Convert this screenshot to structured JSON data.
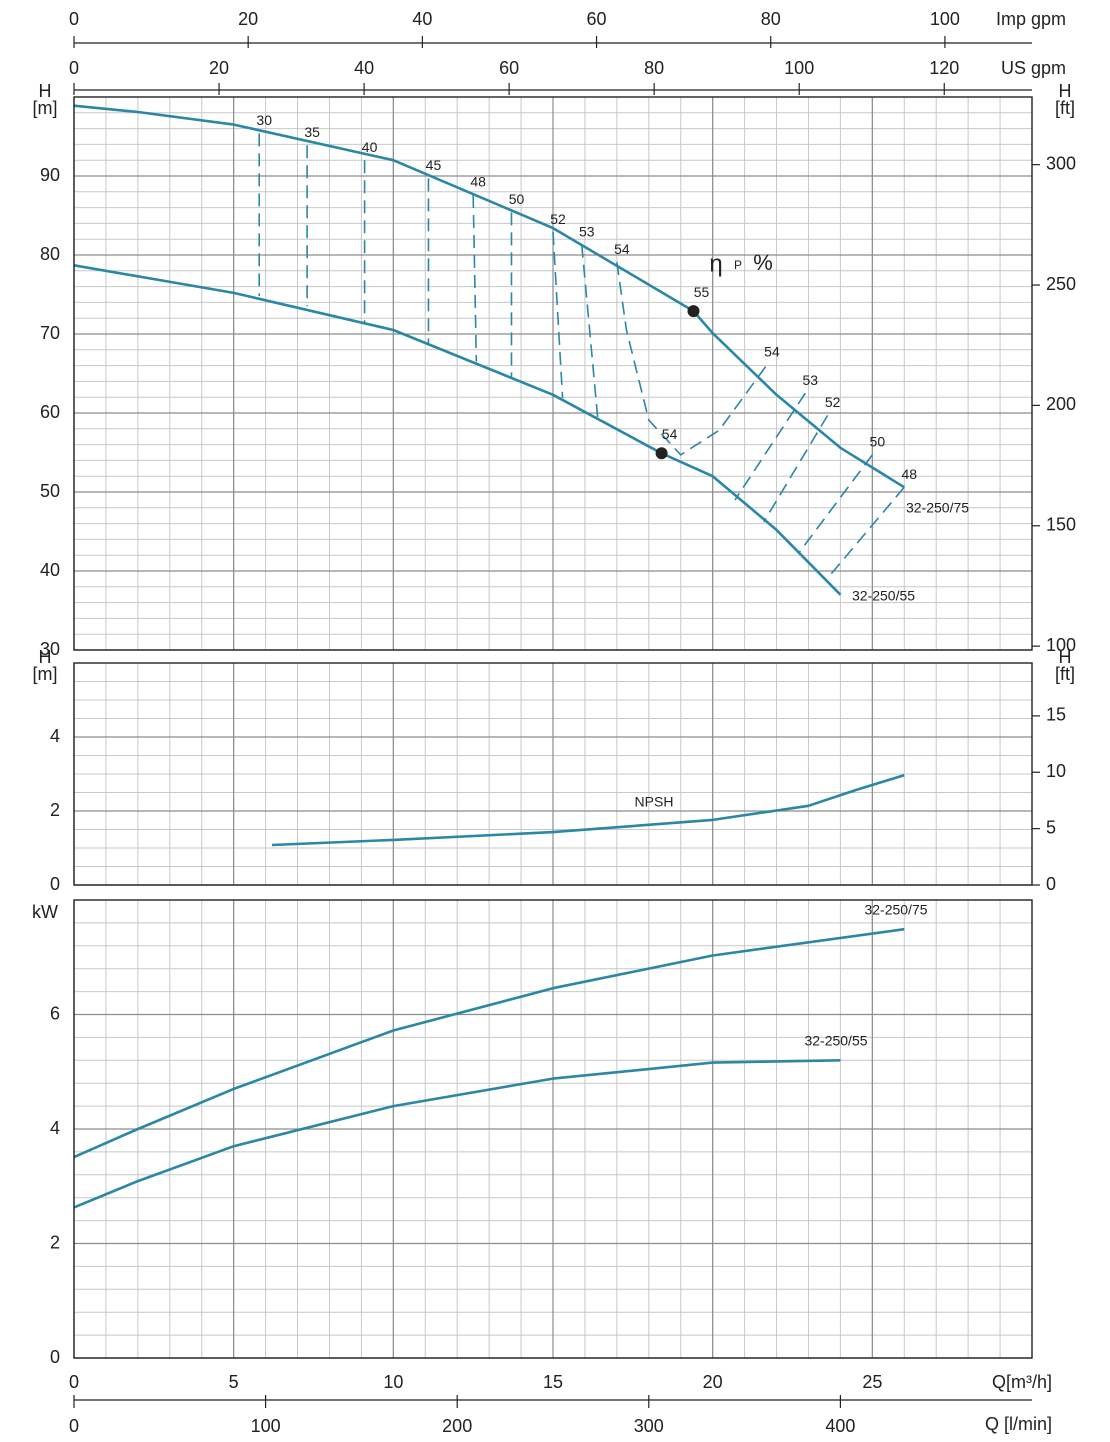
{
  "chart_data": [
    {
      "type": "line",
      "y_label": "H",
      "y_unit": "[m]",
      "y2_label": "H",
      "y2_unit": "[ft]",
      "xlim": [
        0,
        30
      ],
      "xticks": [
        0,
        5,
        10,
        15,
        20,
        25
      ],
      "minor_x_step": 1,
      "ylim": [
        30,
        100
      ],
      "yticks": [
        30,
        40,
        50,
        60,
        70,
        80,
        90
      ],
      "minor_y_step": 2,
      "y2lim": [
        98.4,
        328.1
      ],
      "y2ticks": [
        100,
        150,
        200,
        250,
        300
      ],
      "grid": true,
      "top_axes": [
        {
          "label": "Imp gpm",
          "xlim": [
            0,
            110
          ],
          "xticks": [
            0,
            20,
            40,
            60,
            80,
            100
          ]
        },
        {
          "label": "US gpm",
          "xlim": [
            0,
            132.1
          ],
          "xticks": [
            0,
            20,
            40,
            60,
            80,
            100,
            120
          ]
        }
      ],
      "series": [
        {
          "name": "32-250/75",
          "color": "#2a87a5",
          "x": [
            0,
            2,
            5,
            10,
            15,
            19.4,
            20,
            22,
            24,
            26
          ],
          "values": [
            98.9,
            98.1,
            96.5,
            92.0,
            83.4,
            72.9,
            70.1,
            62.3,
            55.6,
            50.6
          ]
        },
        {
          "name": "32-250/55",
          "color": "#2a87a5",
          "x": [
            0,
            5,
            10,
            15,
            18.4,
            20,
            22,
            24
          ],
          "values": [
            78.7,
            75.2,
            70.5,
            62.3,
            54.9,
            52.0,
            45.2,
            37.0
          ]
        }
      ],
      "efficiency_lines": [
        {
          "label": 30,
          "x": [
            5.8,
            5.8
          ],
          "values": [
            95.4,
            74.8
          ]
        },
        {
          "label": 35,
          "x": [
            7.3,
            7.3
          ],
          "values": [
            93.9,
            73.5
          ]
        },
        {
          "label": 40,
          "x": [
            9.1,
            9.1
          ],
          "values": [
            92.0,
            71.5
          ]
        },
        {
          "label": 45,
          "x": [
            11.1,
            11.1
          ],
          "values": [
            89.7,
            68.6
          ]
        },
        {
          "label": 48,
          "x": [
            12.5,
            12.6
          ],
          "values": [
            87.6,
            66.5
          ]
        },
        {
          "label": 50,
          "x": [
            13.7,
            13.7
          ],
          "values": [
            85.4,
            64.6
          ]
        },
        {
          "label": 52,
          "x": [
            15.0,
            15.3
          ],
          "values": [
            82.9,
            61.9
          ]
        },
        {
          "label": 53,
          "x": [
            15.9,
            16.4
          ],
          "values": [
            81.3,
            59.4
          ]
        },
        {
          "label": 54,
          "x": [
            17.0,
            17.3,
            18.0,
            19.0,
            20.2,
            21.7
          ],
          "values": [
            79.1,
            70.5,
            59.1,
            54.7,
            57.8,
            66.1
          ]
        },
        {
          "label": 54,
          "x": [
            21.7
          ],
          "values": [
            66.1
          ]
        },
        {
          "label": 53,
          "x": [
            22.9,
            20.7
          ],
          "values": [
            62.5,
            49.0
          ]
        },
        {
          "label": 52,
          "x": [
            23.6,
            21.6
          ],
          "values": [
            59.7,
            46.2
          ]
        },
        {
          "label": 50,
          "x": [
            25.0,
            22.7
          ],
          "values": [
            54.7,
            42.3
          ]
        },
        {
          "label": 48,
          "x": [
            26.0,
            23.6
          ],
          "values": [
            50.6,
            39.1
          ]
        }
      ],
      "bep_points": [
        {
          "label": 55,
          "x": 19.4,
          "value": 72.9
        },
        {
          "label": 54,
          "x": 18.4,
          "value": 54.9
        }
      ],
      "efficiency_label": [
        "η",
        "P",
        "%"
      ]
    },
    {
      "type": "line",
      "y_label": "H",
      "y_unit": "[m]",
      "y2_label": "H",
      "y2_unit": "[ft]",
      "xlim": [
        0,
        30
      ],
      "xticks": [
        0,
        5,
        10,
        15,
        20,
        25
      ],
      "minor_x_step": 1,
      "ylim": [
        0,
        6
      ],
      "yticks": [
        0,
        2,
        4
      ],
      "minor_y_step": 0.5,
      "y2lim": [
        0,
        19.69
      ],
      "y2ticks": [
        0,
        5,
        10,
        15
      ],
      "grid": true,
      "series": [
        {
          "name": "NPSH",
          "color": "#2a87a5",
          "x": [
            6.2,
            10,
            15,
            20,
            23,
            24.5,
            26
          ],
          "values": [
            1.08,
            1.22,
            1.43,
            1.76,
            2.14,
            2.57,
            2.97
          ]
        }
      ]
    },
    {
      "type": "line",
      "y_label": "kW",
      "xlim": [
        0,
        30
      ],
      "xticks": [
        0,
        5,
        10,
        15,
        20,
        25
      ],
      "minor_x_step": 1,
      "ylim": [
        0,
        8
      ],
      "yticks": [
        0,
        2,
        4,
        6
      ],
      "minor_y_step": 0.4,
      "x_label": "Q[m³/h]",
      "grid": true,
      "bottom_axis": {
        "label": "Q  [l/min]",
        "xlim": [
          0,
          500
        ],
        "xticks": [
          0,
          100,
          200,
          300,
          400
        ]
      },
      "series": [
        {
          "name": "32-250/75",
          "color": "#2a87a5",
          "x": [
            0,
            2,
            5,
            10,
            15,
            20,
            26
          ],
          "values": [
            3.51,
            4.0,
            4.7,
            5.72,
            6.46,
            7.03,
            7.49
          ]
        },
        {
          "name": "32-250/55",
          "color": "#2a87a5",
          "x": [
            0,
            2,
            5,
            10,
            15,
            20,
            24
          ],
          "values": [
            2.63,
            3.09,
            3.7,
            4.4,
            4.88,
            5.16,
            5.2
          ]
        }
      ]
    }
  ]
}
